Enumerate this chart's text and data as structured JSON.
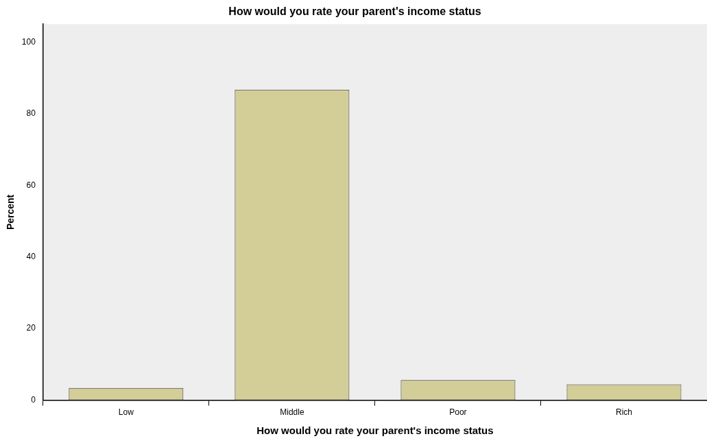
{
  "chart_data": {
    "type": "bar",
    "title": "How would you rate your parent's income status",
    "xlabel": "How would you rate your parent's income status",
    "ylabel": "Percent",
    "categories": [
      "Low",
      "Middle",
      "Poor",
      "Rich"
    ],
    "values": [
      3.4,
      86.7,
      5.6,
      4.4
    ],
    "color": "#d3cd97",
    "ylim": [
      0,
      105
    ],
    "yticks": [
      0,
      20,
      40,
      60,
      80,
      100
    ],
    "grid": false,
    "legend": false
  }
}
